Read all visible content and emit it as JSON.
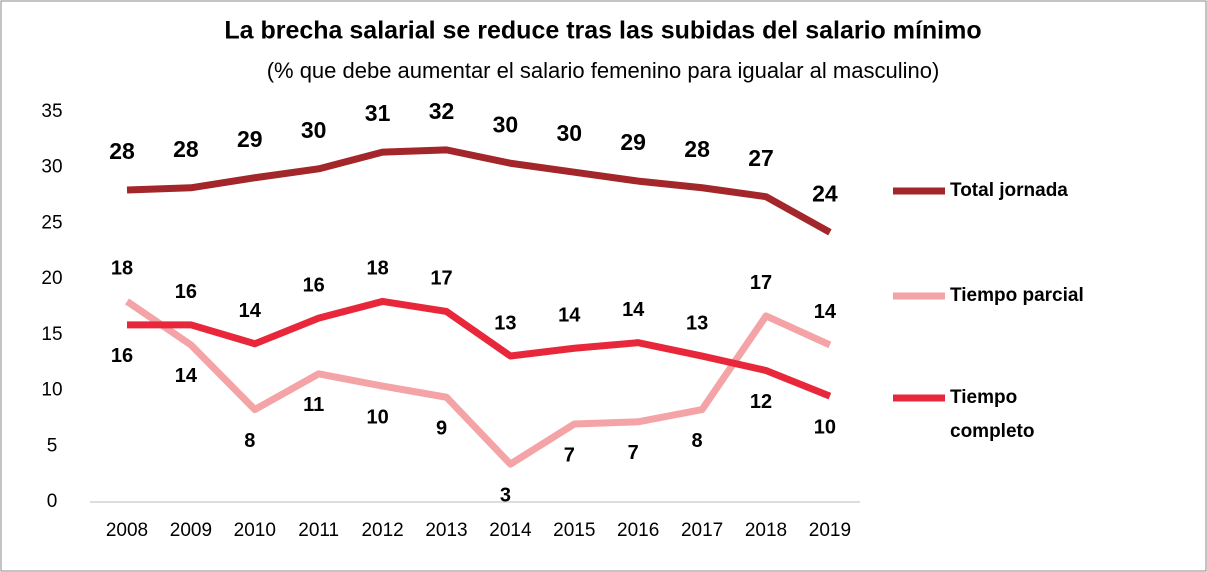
{
  "chart_data": {
    "type": "line",
    "title": "La brecha salarial se reduce tras las subidas del salario mínimo",
    "subtitle": "(% que debe aumentar el salario femenino para igualar al masculino)",
    "categories": [
      "2008",
      "2009",
      "2010",
      "2011",
      "2012",
      "2013",
      "2014",
      "2015",
      "2016",
      "2017",
      "2018",
      "2019"
    ],
    "ylim": [
      0,
      35
    ],
    "yticks": [
      0,
      5,
      10,
      15,
      20,
      25,
      30,
      35
    ],
    "series": [
      {
        "name": "Total jornada",
        "color": "#a3262a",
        "values": [
          28.0,
          28.2,
          29.1,
          29.9,
          31.4,
          31.6,
          30.4,
          29.6,
          28.8,
          28.2,
          27.4,
          24.2
        ],
        "value_labels": [
          "28",
          "28",
          "29",
          "30",
          "31",
          "32",
          "30",
          "30",
          "29",
          "28",
          "27",
          "24"
        ]
      },
      {
        "name": "Tiempo parcial",
        "color": "#f4a3a6",
        "values": [
          18.0,
          14.1,
          8.3,
          11.5,
          10.4,
          9.4,
          3.4,
          7.0,
          7.2,
          8.3,
          16.7,
          14.1
        ],
        "value_labels": [
          "18",
          "14",
          "8",
          "11",
          "10",
          "9",
          "3",
          "7",
          "7",
          "8",
          "17",
          "14"
        ]
      },
      {
        "name": "Tiempo completo",
        "color": "#e8283a",
        "values": [
          15.9,
          15.9,
          14.2,
          16.5,
          18.0,
          17.1,
          13.1,
          13.8,
          14.3,
          13.1,
          11.8,
          9.5
        ],
        "value_labels": [
          "16",
          "16",
          "14",
          "16",
          "18",
          "17",
          "13",
          "14",
          "14",
          "13",
          "12",
          "10"
        ]
      }
    ]
  }
}
